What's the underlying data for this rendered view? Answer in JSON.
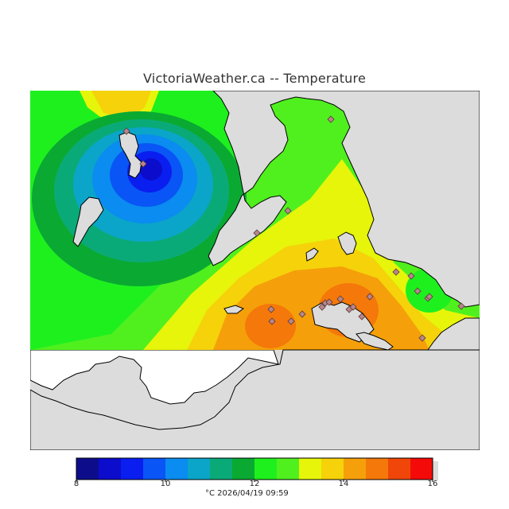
{
  "title": "VictoriaWeather.ca -- Temperature",
  "legend": {
    "min": 8,
    "max": 16,
    "ticks": [
      "8",
      "10",
      "12",
      "14",
      "16"
    ],
    "colors": [
      "#0d0d8c",
      "#0c0ccc",
      "#0a1ef0",
      "#0a55f5",
      "#0a8cf0",
      "#0aa5c8",
      "#0aaa78",
      "#0aaa32",
      "#1ef01e",
      "#50f01e",
      "#e6f50a",
      "#f5d20a",
      "#f5a00a",
      "#f5780a",
      "#f0460a",
      "#f50a0a"
    ]
  },
  "caption": "°C  2026/04/19 09:59",
  "colors": {
    "land_mask": "#dcdcdc",
    "water_unshaded": "#ffffff",
    "coastline": "#000000",
    "station_marker": "#b8868b"
  },
  "stations": {
    "marker_shape": "diamond",
    "count": 24
  }
}
